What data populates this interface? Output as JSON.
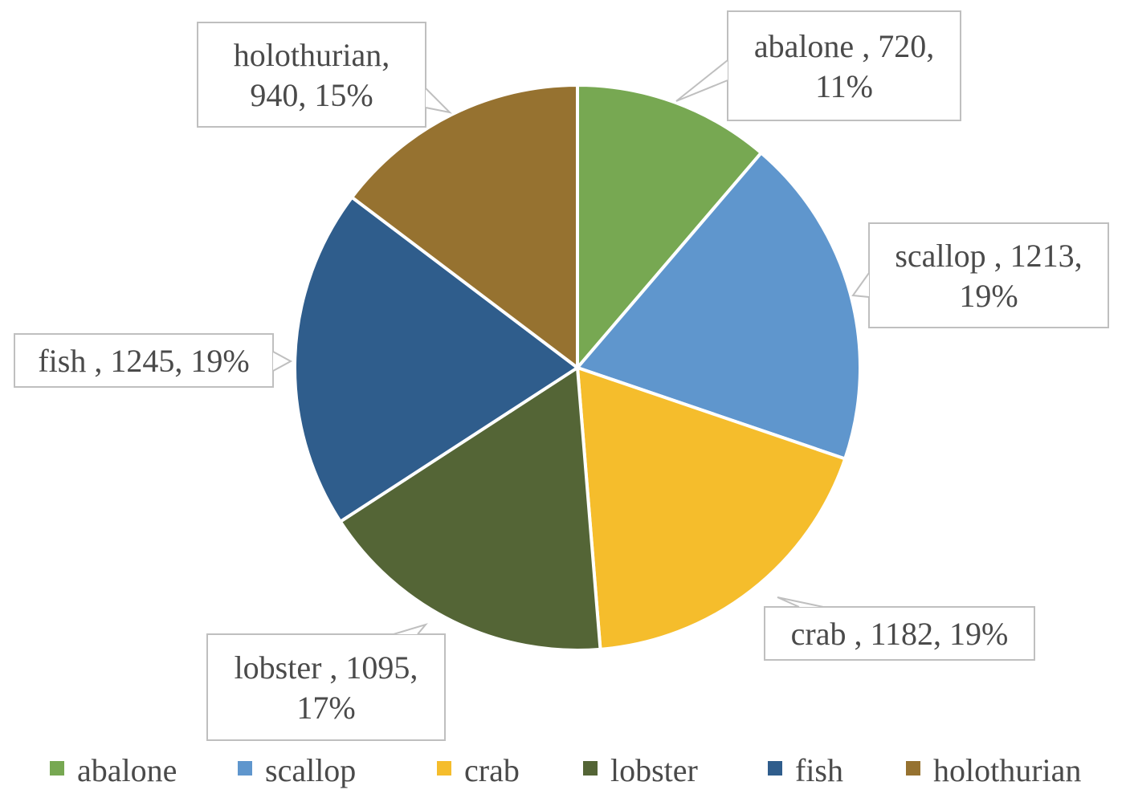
{
  "chart_data": {
    "type": "pie",
    "title": "",
    "series": [
      {
        "values": [
          720,
          1213,
          1182,
          1095,
          1245,
          940
        ]
      }
    ],
    "categories": [
      "abalone",
      "scallop",
      "crab",
      "lobster",
      "fish",
      "holothurian"
    ],
    "values": [
      720,
      1213,
      1182,
      1095,
      1245,
      940
    ],
    "percent_labels": [
      "11%",
      "19%",
      "19%",
      "17%",
      "19%",
      "15%"
    ],
    "data_labels": [
      [
        "abalone , 720,",
        "11%"
      ],
      [
        "scallop , 1213,",
        "19%"
      ],
      [
        "crab , 1182, 19%"
      ],
      [
        "lobster , 1095,",
        "17%"
      ],
      [
        "fish , 1245, 19%"
      ],
      [
        "holothurian,",
        "940, 15%"
      ]
    ],
    "colors": [
      "#77a852",
      "#5f96cd",
      "#f5bd2c",
      "#546536",
      "#2f5d8c",
      "#967230"
    ],
    "start_angle_deg": 0,
    "direction": "clockwise",
    "legend": {
      "position": "bottom",
      "entries": [
        "abalone",
        "scallop",
        "crab",
        "lobster",
        "fish",
        "holothurian"
      ]
    }
  }
}
